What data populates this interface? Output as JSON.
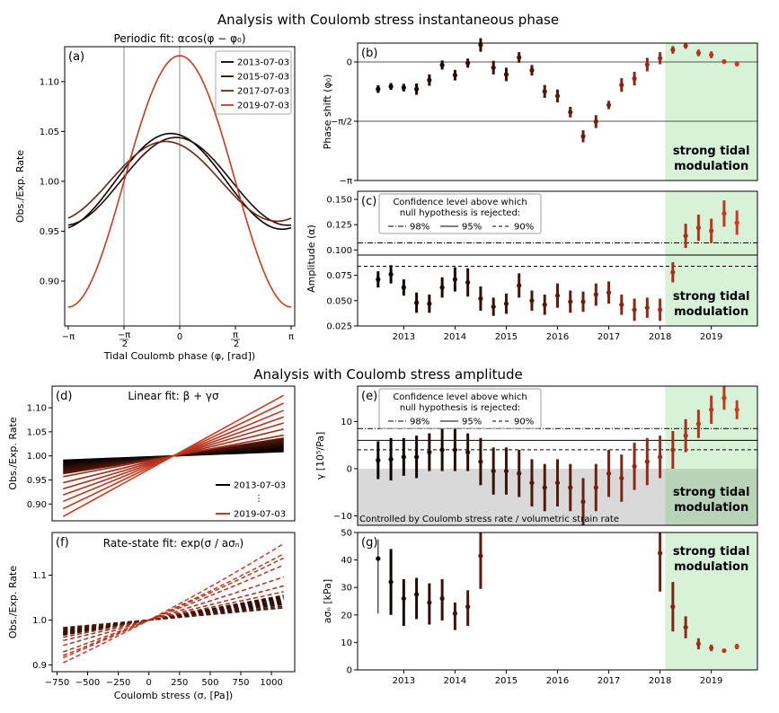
{
  "suptitles": {
    "phase": "Analysis with Coulomb stress instantaneous phase",
    "amplitude": "Analysis with Coulomb stress amplitude"
  },
  "strong_label": [
    "strong tidal",
    "modulation"
  ],
  "colors": {
    "dark": "#000000",
    "mid": "#5a1a0c",
    "red": "#cc3a22",
    "green_band": "#d8f2d8",
    "gray_region": "#d9d9d9"
  },
  "confidence_legend": {
    "title_lines": [
      "Confidence level above which",
      "null hypothesis is rejected:"
    ],
    "entries": [
      "98%",
      "95%",
      "90%"
    ]
  },
  "chart_data": [
    {
      "panel": "a",
      "label": "(a)",
      "type": "line",
      "title": "Periodic fit: αcos(φ − φ₀)",
      "xlabel": "Tidal Coulomb phase (φ, [rad])",
      "ylabel": "Obs./Exp. Rate",
      "xlim": [
        -3.2416,
        3.2416
      ],
      "ylim": [
        0.855,
        1.135
      ],
      "xticks": [
        -3.1416,
        -1.5708,
        0,
        1.5708,
        3.1416
      ],
      "xtick_labels": [
        "−π",
        "−π/2",
        "0",
        "π/2",
        "π"
      ],
      "yticks": [
        0.9,
        0.95,
        1.0,
        1.05,
        1.1
      ],
      "ytick_labels": [
        "0.90",
        "0.95",
        "1.00",
        "1.05",
        "1.10"
      ],
      "vlines": [
        -1.5708,
        0
      ],
      "legend": "top-right",
      "series": [
        {
          "name": "2013-07-03",
          "alpha": 0.048,
          "phi0": -0.25,
          "color": "#000000"
        },
        {
          "name": "2015-07-03",
          "alpha": 0.044,
          "phi0": -0.1,
          "color": "#2a0a05"
        },
        {
          "name": "2017-07-03",
          "alpha": 0.04,
          "phi0": -0.4,
          "color": "#6b2414"
        },
        {
          "name": "2019-07-03",
          "alpha": 0.126,
          "phi0": 0.0,
          "color": "#cc3a22"
        }
      ]
    },
    {
      "panel": "b",
      "label": "(b)",
      "type": "scatter",
      "ylabel": "Phase shift (φ₀)",
      "xlim": [
        2012.1,
        2019.9
      ],
      "ylim": [
        -3.1416,
        0.5
      ],
      "yticks": [
        0,
        -1.5708,
        -3.1416
      ],
      "ytick_labels": [
        "0",
        "−π/2",
        "−π"
      ],
      "hlines": [
        0,
        -1.5708
      ],
      "highlight_from": 2018.1,
      "x": [
        2012.5,
        2012.75,
        2013.0,
        2013.25,
        2013.5,
        2013.75,
        2014.0,
        2014.25,
        2014.5,
        2014.75,
        2015.0,
        2015.25,
        2015.5,
        2015.75,
        2016.0,
        2016.25,
        2016.5,
        2016.75,
        2017.0,
        2017.25,
        2017.5,
        2017.75,
        2018.0,
        2018.25,
        2018.5,
        2018.75,
        2019.0,
        2019.25,
        2019.5
      ],
      "y": [
        -0.72,
        -0.65,
        -0.68,
        -0.72,
        -0.48,
        -0.08,
        -0.35,
        -0.03,
        0.45,
        -0.15,
        -0.33,
        0.12,
        -0.22,
        -0.78,
        -0.9,
        -1.33,
        -1.97,
        -1.58,
        -1.14,
        -0.61,
        -0.44,
        -0.07,
        0.1,
        0.32,
        0.43,
        0.24,
        0.19,
        0.01,
        -0.05
      ],
      "yerr": [
        0.1,
        0.09,
        0.1,
        0.15,
        0.15,
        0.12,
        0.14,
        0.12,
        0.18,
        0.18,
        0.18,
        0.14,
        0.14,
        0.17,
        0.17,
        0.14,
        0.16,
        0.17,
        0.11,
        0.18,
        0.18,
        0.18,
        0.16,
        0.1,
        0.08,
        0.09,
        0.09,
        0.06,
        0.07
      ]
    },
    {
      "panel": "c",
      "label": "(c)",
      "type": "scatter",
      "ylabel": "Amplitude (α)",
      "xlim": [
        2012.1,
        2019.9
      ],
      "ylim": [
        0.025,
        0.158
      ],
      "yticks": [
        0.025,
        0.05,
        0.075,
        0.1,
        0.125,
        0.15
      ],
      "ytick_labels": [
        "0.025",
        "0.050",
        "0.075",
        "0.100",
        "0.125",
        "0.150"
      ],
      "xticks": [
        2013,
        2014,
        2015,
        2016,
        2017,
        2018,
        2019
      ],
      "xtick_labels": [
        "2013",
        "2014",
        "2015",
        "2016",
        "2017",
        "2018",
        "2019"
      ],
      "thresholds": {
        "98%": 0.107,
        "95%": 0.095,
        "90%": 0.084
      },
      "highlight_from": 2018.1,
      "x": [
        2012.5,
        2012.75,
        2013.0,
        2013.25,
        2013.5,
        2013.75,
        2014.0,
        2014.25,
        2014.5,
        2014.75,
        2015.0,
        2015.25,
        2015.5,
        2015.75,
        2016.0,
        2016.25,
        2016.5,
        2016.75,
        2017.0,
        2017.25,
        2017.5,
        2017.75,
        2018.0,
        2018.25,
        2018.5,
        2018.75,
        2019.0,
        2019.25,
        2019.5
      ],
      "y": [
        0.071,
        0.076,
        0.063,
        0.048,
        0.047,
        0.063,
        0.071,
        0.068,
        0.052,
        0.044,
        0.047,
        0.065,
        0.05,
        0.046,
        0.055,
        0.049,
        0.049,
        0.056,
        0.058,
        0.046,
        0.041,
        0.043,
        0.041,
        0.078,
        0.114,
        0.122,
        0.119,
        0.136,
        0.127
      ],
      "yerr": [
        0.008,
        0.009,
        0.008,
        0.01,
        0.009,
        0.01,
        0.012,
        0.014,
        0.012,
        0.009,
        0.01,
        0.012,
        0.01,
        0.01,
        0.012,
        0.011,
        0.01,
        0.011,
        0.011,
        0.01,
        0.011,
        0.01,
        0.011,
        0.01,
        0.012,
        0.013,
        0.012,
        0.013,
        0.012
      ]
    },
    {
      "panel": "d",
      "label": "(d)",
      "type": "line",
      "title": "Linear fit: β + γσ",
      "ylabel": "Obs./Exp. Rate",
      "xlim": [
        -790,
        1190
      ],
      "ylim": [
        0.865,
        1.145
      ],
      "yticks": [
        0.9,
        0.95,
        1.0,
        1.05,
        1.1
      ],
      "ytick_labels": [
        "0.90",
        "0.95",
        "1.00",
        "1.05",
        "1.10"
      ],
      "x_range": [
        -700,
        1100
      ],
      "pivot": 200,
      "legend_labels": [
        "2013-07-03",
        "2019-07-03"
      ],
      "legend_ellipsis": "⋮",
      "legend": "bottom-right",
      "slopes_dark": [
        1e-05,
        1.3e-05,
        1.55e-05,
        1.8e-05,
        2.05e-05,
        2.3e-05,
        2.55e-05,
        2.8e-05,
        3.05e-05,
        3.3e-05,
        3.5e-05,
        3.7e-05,
        3.9e-05,
        4.1e-05
      ],
      "slopes_red": [
        4.8e-05,
        6.2e-05,
        7.6e-05,
        9e-05,
        0.000105,
        0.000122,
        0.00014
      ]
    },
    {
      "panel": "e",
      "label": "(e)",
      "type": "scatter",
      "ylabel": "γ [10⁵/Pa]",
      "xlim": [
        2012.1,
        2019.9
      ],
      "ylim": [
        -12,
        17.5
      ],
      "yticks": [
        -10,
        0,
        10
      ],
      "ytick_labels": [
        "−10",
        "0",
        "10"
      ],
      "thresholds": {
        "98%": 8.5,
        "95%": 6.0,
        "90%": 4.0
      },
      "gray_region_label": "Controlled by Coulomb stress rate / volumetric strain rate",
      "highlight_from": 2018.1,
      "x": [
        2012.5,
        2012.75,
        2013.0,
        2013.25,
        2013.5,
        2013.75,
        2014.0,
        2014.25,
        2014.5,
        2014.75,
        2015.0,
        2015.25,
        2015.5,
        2015.75,
        2016.0,
        2016.25,
        2016.5,
        2016.75,
        2017.0,
        2017.25,
        2017.5,
        2017.75,
        2018.0,
        2018.25,
        2018.5,
        2018.75,
        2019.0,
        2019.25,
        2019.5
      ],
      "y": [
        1.8,
        2.0,
        2.5,
        2.5,
        3.5,
        4.0,
        4.0,
        3.5,
        1.5,
        -0.5,
        -0.5,
        -1.0,
        -3.0,
        -4.0,
        -3.0,
        -4.0,
        -7.0,
        -4.0,
        -1.0,
        -2.0,
        0.5,
        1.5,
        2.5,
        4.0,
        7.0,
        9.5,
        12.5,
        15.0,
        12.5
      ],
      "yerr": [
        4.0,
        4.5,
        4.0,
        4.5,
        4.0,
        4.5,
        4.5,
        4.0,
        5.0,
        5.0,
        5.0,
        5.0,
        5.0,
        5.0,
        5.0,
        5.0,
        5.0,
        5.0,
        5.0,
        5.0,
        5.0,
        5.0,
        4.5,
        4.0,
        3.5,
        3.0,
        3.0,
        2.5,
        2.0
      ]
    },
    {
      "panel": "f",
      "label": "(f)",
      "type": "line",
      "title": "Rate-state fit: exp(σ / aσₙ)",
      "xlabel": "Coulomb stress (σ, [Pa])",
      "ylabel": "Obs./Exp. Rate",
      "xlim": [
        -790,
        1190
      ],
      "ylim": [
        0.885,
        1.195
      ],
      "yticks": [
        0.9,
        1.0,
        1.1
      ],
      "ytick_labels": [
        "0.9",
        "1.0",
        "1.1"
      ],
      "xticks": [
        -750,
        -500,
        -250,
        0,
        250,
        500,
        750,
        1000
      ],
      "xtick_labels": [
        "−750",
        "−500",
        "−250",
        "0",
        "250",
        "500",
        "750",
        "1000"
      ],
      "x_range": [
        -700,
        1100
      ],
      "asn_dark": [
        40.5,
        32,
        28,
        26,
        24.5,
        23.5,
        22.5,
        21.5,
        20.5,
        26,
        24,
        30,
        36,
        41
      ],
      "asn_red": [
        7.0,
        8.0,
        8.5,
        9.5,
        12.0,
        15.0,
        18.0
      ]
    },
    {
      "panel": "g",
      "label": "(g)",
      "type": "scatter",
      "ylabel": "aσₙ [kPa]",
      "xlim": [
        2012.1,
        2019.9
      ],
      "ylim": [
        0,
        50
      ],
      "yticks": [
        0,
        10,
        20,
        30,
        40,
        50
      ],
      "ytick_labels": [
        "0",
        "10",
        "20",
        "30",
        "40",
        "50"
      ],
      "xticks": [
        2013,
        2014,
        2015,
        2016,
        2017,
        2018,
        2019
      ],
      "xtick_labels": [
        "2013",
        "2014",
        "2015",
        "2016",
        "2017",
        "2018",
        "2019"
      ],
      "highlight_from": 2018.1,
      "x": [
        2012.5,
        2012.75,
        2013.0,
        2013.25,
        2013.5,
        2013.75,
        2014.0,
        2014.25,
        2014.5,
        2018.0,
        2018.25,
        2018.5,
        2018.75,
        2019.0,
        2019.25,
        2019.5
      ],
      "y": [
        40.5,
        32,
        26,
        27.5,
        24.5,
        26,
        20.5,
        23,
        41.5,
        42.5,
        23,
        15.5,
        9.5,
        8.0,
        7.0,
        8.5
      ],
      "yerr_low": [
        20,
        12,
        10,
        9,
        8,
        8,
        6,
        7,
        12,
        14,
        9,
        4,
        2,
        1.2,
        0.7,
        1.0
      ],
      "yerr_high": [
        7,
        12,
        7,
        6,
        7,
        7,
        4,
        6,
        15,
        20,
        9,
        4,
        2,
        1.2,
        0.7,
        1.0
      ]
    }
  ]
}
